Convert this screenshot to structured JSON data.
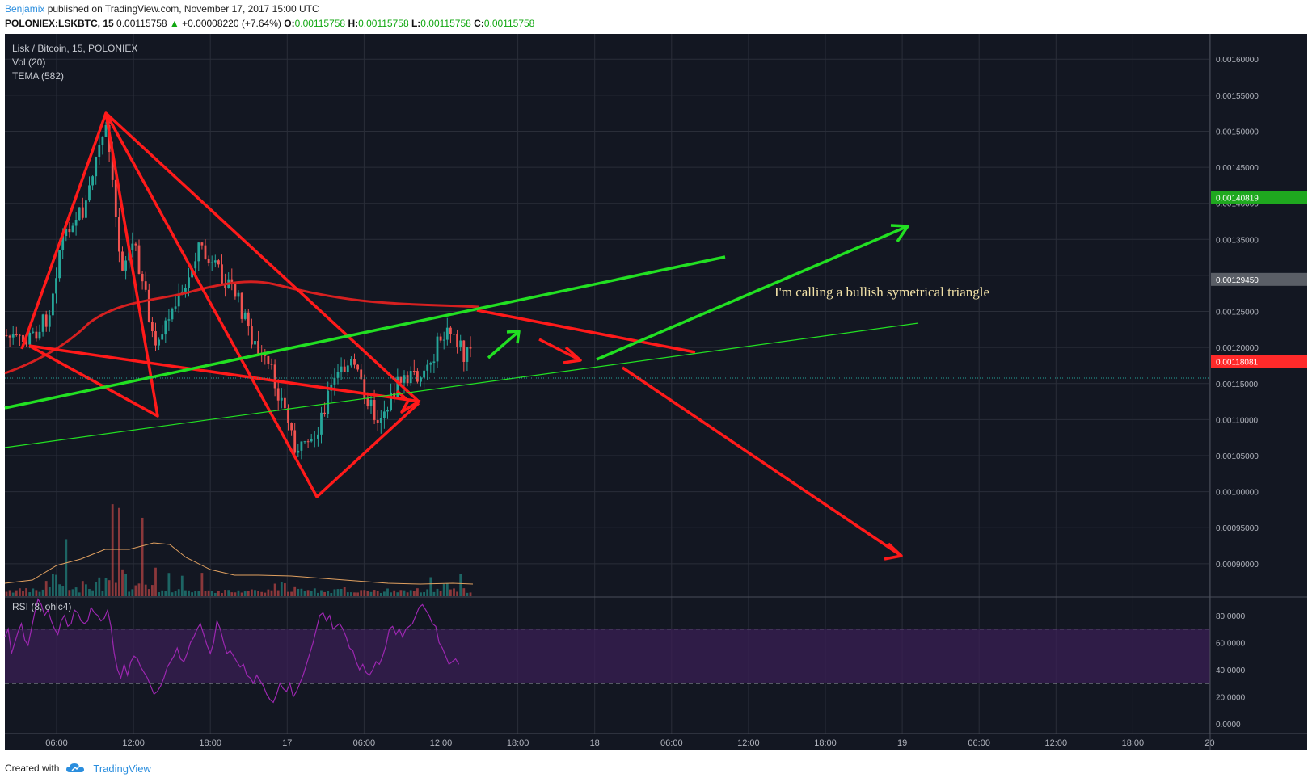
{
  "header": {
    "author": "Benjamix",
    "published": "published on TradingView.com, November 17, 2017 15:00 UTC",
    "symbol": "POLONIEX:LSKBTC, 15",
    "last": "0.00115758",
    "change_arrow": "▲",
    "change": "+0.00008220 (+7.64%)",
    "o_label": "O:",
    "o": "0.00115758",
    "h_label": "H:",
    "h": "0.00115758",
    "l_label": "L:",
    "l": "0.00115758",
    "c_label": "C:",
    "c": "0.00115758"
  },
  "legend": {
    "title": "Lisk / Bitcoin, 15, POLONIEX",
    "vol": "Vol (20)",
    "tema": "TEMA (582)",
    "rsi": "RSI (8, ohlc4)"
  },
  "annotation": "I'm calling a bullish symetrical triangle",
  "footer": {
    "created_with": "Created with",
    "brand": "TradingView"
  },
  "colors": {
    "background": "#131722",
    "grid": "#2a2e39",
    "up": "#26a69a",
    "down": "#ef5350",
    "drawing_red": "#ff1a1a",
    "drawing_green": "#22e022",
    "rsi_line": "#9c27b0",
    "rsi_band": "#3a1f54",
    "tema": "#d62020",
    "vol_ma": "#e0a060"
  },
  "chart_data": {
    "type": "candlestick",
    "price_axis": {
      "ticks": [
        "0.00160000",
        "0.00155000",
        "0.00150000",
        "0.00145000",
        "0.00140000",
        "0.00135000",
        "0.00130000",
        "0.00125000",
        "0.00120000",
        "0.00115000",
        "0.00110000",
        "0.00105000",
        "0.00100000",
        "0.00095000",
        "0.00090000"
      ],
      "tick_values": [
        0.0016,
        0.00155,
        0.0015,
        0.00145,
        0.0014,
        0.00135,
        0.0013,
        0.00125,
        0.0012,
        0.00115,
        0.0011,
        0.00105,
        0.001,
        0.00095,
        0.0009
      ],
      "range": [
        0.000855,
        0.001635
      ]
    },
    "price_labels": [
      {
        "value": "0.00140819",
        "y": 0.00140819,
        "color": "#1fa81f"
      },
      {
        "value": "0.00129450",
        "y": 0.0012945,
        "color": "#5a5e66"
      },
      {
        "value": "0.00118081",
        "y": 0.00118081,
        "color": "#ff2a2a"
      }
    ],
    "last_price": 0.00115758,
    "time_axis": {
      "labels": [
        "06:00",
        "12:00",
        "18:00",
        "17",
        "06:00",
        "12:00",
        "18:00",
        "18",
        "06:00",
        "12:00",
        "18:00",
        "19",
        "06:00",
        "12:00",
        "18:00",
        "20"
      ],
      "hours": [
        6,
        12,
        18,
        24,
        30,
        36,
        42,
        48,
        54,
        60,
        66,
        72,
        78,
        84,
        90,
        96
      ]
    },
    "rsi_axis": {
      "ticks": [
        "80.0000",
        "60.0000",
        "40.0000",
        "20.0000",
        "0.0000"
      ],
      "tick_values": [
        80,
        60,
        40,
        20,
        0
      ],
      "range": [
        -7,
        93
      ],
      "bands": [
        70,
        30
      ]
    },
    "rsi_values": [
      64,
      70,
      52,
      60,
      68,
      74,
      62,
      58,
      70,
      82,
      92,
      88,
      80,
      84,
      76,
      70,
      66,
      76,
      80,
      72,
      74,
      84,
      82,
      76,
      74,
      76,
      86,
      82,
      80,
      76,
      78,
      84,
      72,
      52,
      40,
      34,
      44,
      36,
      46,
      50,
      48,
      42,
      38,
      34,
      28,
      22,
      24,
      28,
      34,
      42,
      46,
      50,
      56,
      48,
      46,
      52,
      60,
      64,
      70,
      74,
      66,
      58,
      52,
      60,
      76,
      70,
      60,
      52,
      54,
      50,
      46,
      42,
      44,
      36,
      34,
      30,
      36,
      32,
      28,
      22,
      18,
      16,
      22,
      30,
      26,
      24,
      30,
      20,
      24,
      30,
      36,
      44,
      52,
      60,
      70,
      80,
      82,
      76,
      80,
      70,
      72,
      74,
      70,
      64,
      56,
      54,
      46,
      40,
      44,
      38,
      36,
      40,
      46,
      44,
      50,
      58,
      70,
      72,
      66,
      70,
      64,
      70,
      72,
      74,
      80,
      86,
      88,
      84,
      80,
      74,
      72,
      60,
      56,
      50,
      44,
      46,
      48,
      44
    ],
    "annotations": {
      "arrow_labels": []
    }
  }
}
